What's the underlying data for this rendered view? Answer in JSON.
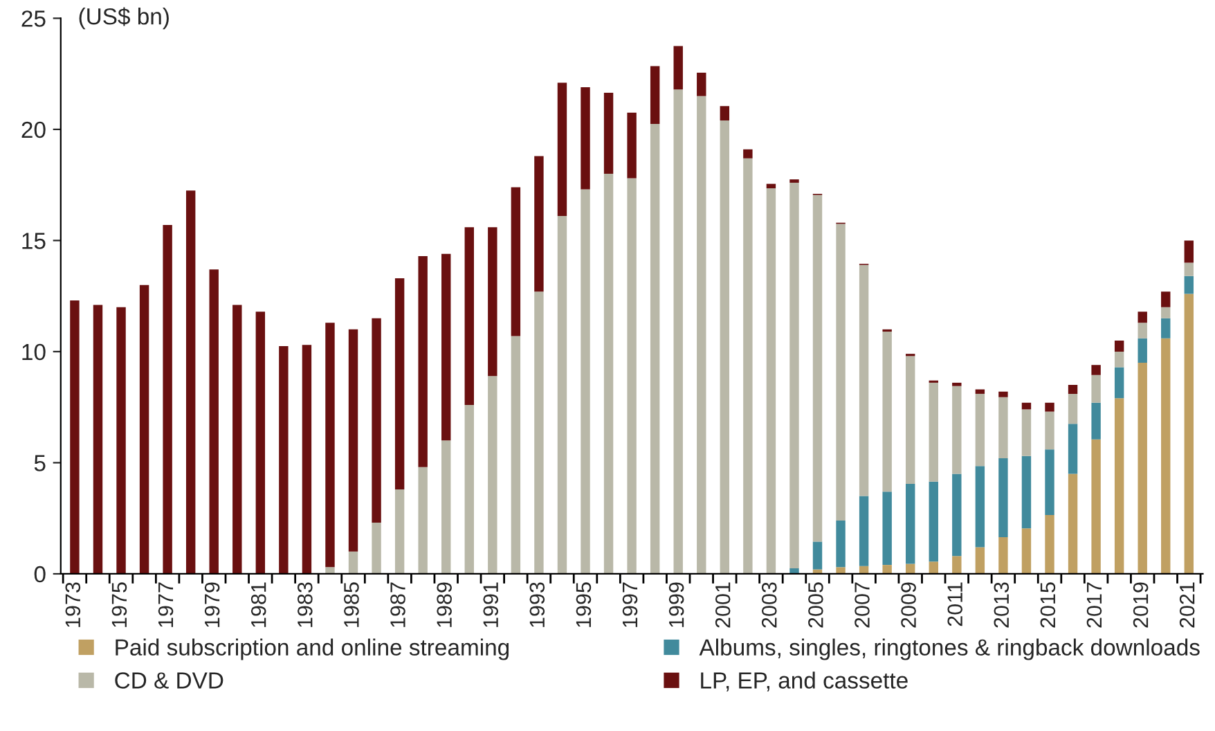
{
  "chart_data": {
    "type": "bar",
    "stacked": true,
    "ylabel": "(US$ bn)",
    "categories": [
      "1973",
      null,
      "1975",
      null,
      "1977",
      null,
      "1979",
      null,
      "1981",
      null,
      "1983",
      null,
      "1985",
      null,
      "1987",
      null,
      "1989",
      null,
      "1991",
      null,
      "1993",
      null,
      "1995",
      null,
      "1997",
      null,
      "1999",
      null,
      "2001",
      null,
      "2003",
      null,
      "2005",
      null,
      "2007",
      null,
      "2009",
      null,
      "2011",
      null,
      "2013",
      null,
      "2015",
      null,
      "2017",
      null,
      "2019",
      null,
      "2021"
    ],
    "series": [
      {
        "name": "Paid subscription and online streaming",
        "color": "#c0a062",
        "values": [
          0,
          0,
          0,
          0,
          0,
          0,
          0,
          0,
          0,
          0,
          0,
          0,
          0,
          0,
          0,
          0,
          0,
          0,
          0,
          0,
          0,
          0,
          0,
          0,
          0,
          0,
          0,
          0,
          0,
          0,
          0,
          0,
          0.2,
          0.3,
          0.35,
          0.4,
          0.45,
          0.55,
          0.8,
          1.2,
          1.65,
          2.05,
          2.65,
          4.5,
          6.05,
          7.9,
          9.5,
          10.6,
          12.6
        ]
      },
      {
        "name": "Albums, singles, ringtones & ringback downloads",
        "color": "#418a9c",
        "values": [
          0,
          0,
          0,
          0,
          0,
          0,
          0,
          0,
          0,
          0,
          0,
          0,
          0,
          0,
          0,
          0,
          0,
          0,
          0,
          0,
          0,
          0,
          0,
          0,
          0,
          0,
          0,
          0,
          0,
          0,
          0,
          0.25,
          1.25,
          2.1,
          3.15,
          3.3,
          3.6,
          3.6,
          3.7,
          3.65,
          3.55,
          3.25,
          2.95,
          2.25,
          1.65,
          1.4,
          1.1,
          0.9,
          0.8
        ]
      },
      {
        "name": "CD & DVD",
        "color": "#b9b8a8",
        "values": [
          0,
          0,
          0,
          0,
          0,
          0,
          0,
          0,
          0,
          0,
          0,
          0.3,
          1.0,
          2.3,
          3.8,
          4.8,
          6.0,
          7.6,
          8.9,
          10.7,
          12.7,
          16.1,
          17.3,
          18.0,
          17.8,
          20.25,
          21.8,
          21.5,
          20.4,
          18.7,
          17.35,
          17.35,
          15.6,
          13.35,
          10.4,
          7.2,
          5.75,
          4.45,
          3.95,
          3.25,
          2.75,
          2.1,
          1.7,
          1.35,
          1.25,
          0.7,
          0.7,
          0.5,
          0.6
        ]
      },
      {
        "name": "LP, EP, and cassette",
        "color": "#6a1010",
        "values": [
          12.3,
          12.1,
          12.0,
          13.0,
          15.7,
          17.25,
          13.7,
          12.1,
          11.8,
          10.25,
          10.3,
          11.0,
          10.0,
          9.2,
          9.5,
          9.5,
          8.4,
          8.0,
          6.7,
          6.7,
          6.1,
          6.0,
          4.6,
          3.65,
          2.95,
          2.6,
          1.95,
          1.05,
          0.65,
          0.4,
          0.2,
          0.15,
          0.05,
          0.05,
          0.05,
          0.1,
          0.1,
          0.1,
          0.15,
          0.2,
          0.25,
          0.3,
          0.4,
          0.4,
          0.45,
          0.5,
          0.5,
          0.7,
          1.0
        ]
      }
    ],
    "ylim": [
      0,
      25
    ],
    "yticks": [
      0,
      5,
      10,
      15,
      20,
      25
    ],
    "legend": "bottom",
    "marker": "square"
  }
}
